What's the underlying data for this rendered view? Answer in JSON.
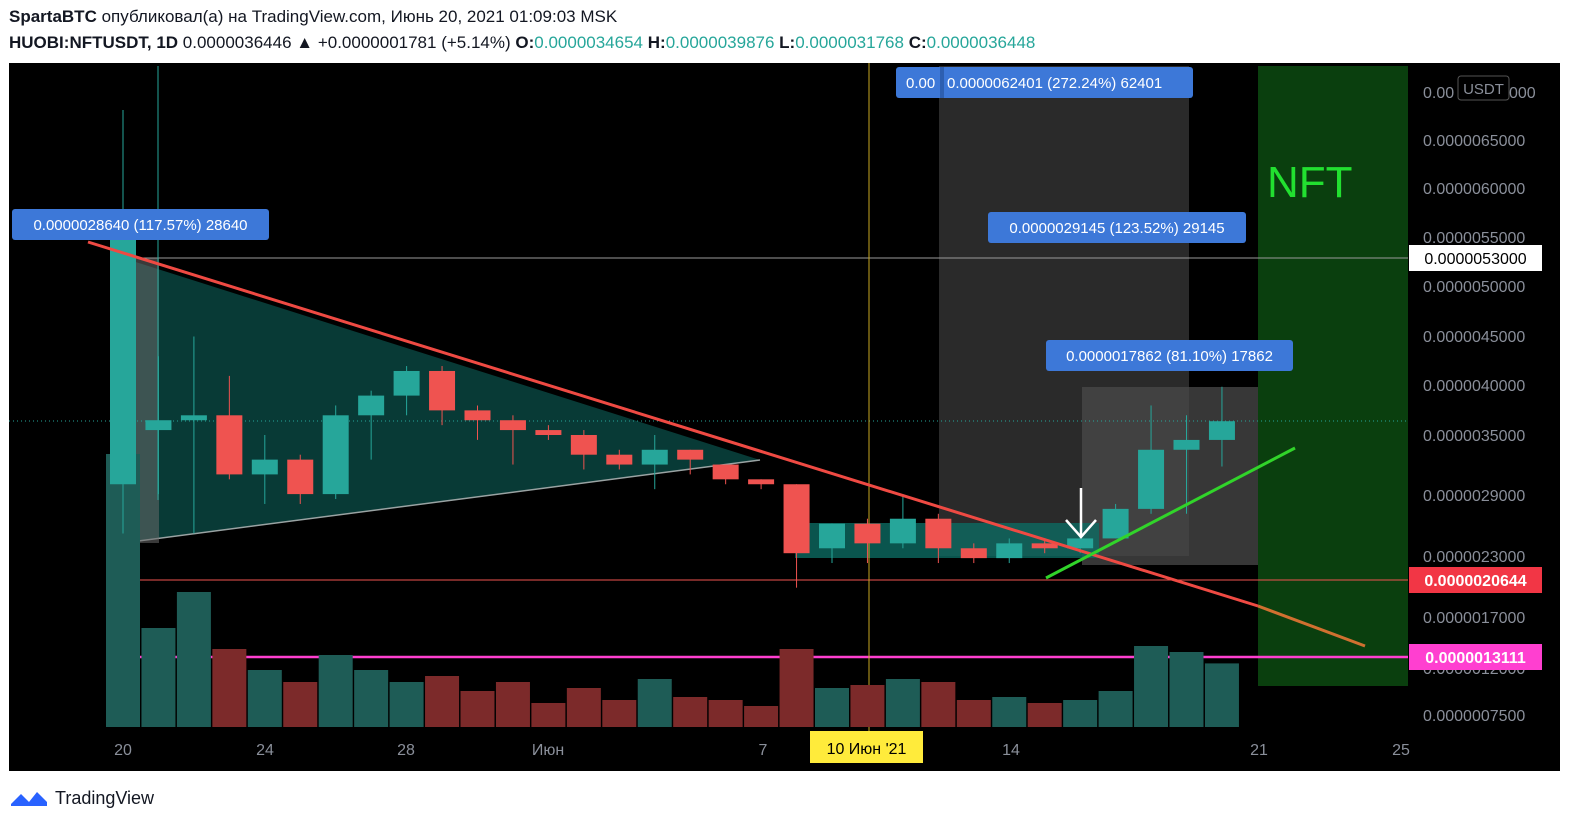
{
  "header": {
    "author": "SpartaBTC",
    "published_text": "опубликовал(а) на TradingView.com, Июнь 20, 2021 01:09:03 MSK",
    "symbol": "HUOBI:NFTUSDT, 1D",
    "last": "0.0000036446",
    "change": "▲ +0.0000001781 (+5.14%)",
    "o_label": "O:",
    "o_value": "0.0000034654",
    "h_label": "H:",
    "h_value": "0.0000039876",
    "l_label": "L:",
    "l_value": "0.0000031768",
    "c_label": "C:",
    "c_value": "0.0000036448"
  },
  "footer": {
    "brand": "TradingView"
  },
  "chart_data": {
    "type": "candlestick",
    "currency": "USDT",
    "y_ticks": [
      "0.0000065000",
      "0.0000060000",
      "0.0000055000",
      "0.0000050000",
      "0.0000045000",
      "0.0000040000",
      "0.0000035000",
      "0.0000029000",
      "0.0000023000",
      "0.0000017000",
      "0.0000012000",
      "0.0000007500"
    ],
    "y_top_tick_partial": "0.00",
    "y_top_tick_tail": "000",
    "x_ticks": [
      "20",
      "24",
      "28",
      "Июн",
      "7",
      "14",
      "21",
      "25"
    ],
    "crosshair_date": "10 Июн '21",
    "price_labels": [
      {
        "value": "0.0000053000",
        "style": "white"
      },
      {
        "value": "0.0000020644",
        "style": "red"
      },
      {
        "value": "0.0000013111",
        "style": "magenta"
      }
    ],
    "annotations": [
      "0.0000028640 (117.57%) 28640",
      "0.0000029145 (123.52%) 29145",
      "0.0000017862 (81.10%) 17862",
      "0.0000062401 (272.24%) 62401",
      "0.00"
    ],
    "text_label": "NFT",
    "candles": [
      {
        "date": "2021-05-20",
        "o": 3.0,
        "h": 6.8,
        "l": 2.5,
        "c": 5.5
      },
      {
        "date": "2021-05-21",
        "o": 3.55,
        "h": 4.3,
        "l": 2.9,
        "c": 3.65
      },
      {
        "date": "2021-05-22",
        "o": 3.65,
        "h": 4.5,
        "l": 2.5,
        "c": 3.7
      },
      {
        "date": "2021-05-23",
        "o": 3.7,
        "h": 4.1,
        "l": 3.05,
        "c": 3.1
      },
      {
        "date": "2021-05-24",
        "o": 3.1,
        "h": 3.5,
        "l": 2.8,
        "c": 3.25
      },
      {
        "date": "2021-05-25",
        "o": 3.25,
        "h": 3.3,
        "l": 2.8,
        "c": 2.9
      },
      {
        "date": "2021-05-26",
        "o": 2.9,
        "h": 3.8,
        "l": 2.85,
        "c": 3.7
      },
      {
        "date": "2021-05-27",
        "o": 3.7,
        "h": 3.95,
        "l": 3.25,
        "c": 3.9
      },
      {
        "date": "2021-05-28",
        "o": 3.9,
        "h": 4.2,
        "l": 3.7,
        "c": 4.15
      },
      {
        "date": "2021-05-29",
        "o": 4.15,
        "h": 4.2,
        "l": 3.6,
        "c": 3.75
      },
      {
        "date": "2021-05-30",
        "o": 3.75,
        "h": 3.8,
        "l": 3.45,
        "c": 3.65
      },
      {
        "date": "2021-05-31",
        "o": 3.65,
        "h": 3.7,
        "l": 3.2,
        "c": 3.55
      },
      {
        "date": "2021-06-01",
        "o": 3.55,
        "h": 3.6,
        "l": 3.45,
        "c": 3.5
      },
      {
        "date": "2021-06-02",
        "o": 3.5,
        "h": 3.55,
        "l": 3.15,
        "c": 3.3
      },
      {
        "date": "2021-06-03",
        "o": 3.3,
        "h": 3.35,
        "l": 3.15,
        "c": 3.2
      },
      {
        "date": "2021-06-04",
        "o": 3.2,
        "h": 3.5,
        "l": 2.95,
        "c": 3.35
      },
      {
        "date": "2021-06-05",
        "o": 3.35,
        "h": 3.35,
        "l": 3.1,
        "c": 3.25
      },
      {
        "date": "2021-06-06",
        "o": 3.2,
        "h": 3.2,
        "l": 3.0,
        "c": 3.05
      },
      {
        "date": "2021-06-07",
        "o": 3.05,
        "h": 3.05,
        "l": 2.95,
        "c": 3.0
      },
      {
        "date": "2021-06-08",
        "o": 3.0,
        "h": 3.0,
        "l": 1.95,
        "c": 2.3
      },
      {
        "date": "2021-06-09",
        "o": 2.35,
        "h": 2.6,
        "l": 2.2,
        "c": 2.6
      },
      {
        "date": "2021-06-10",
        "o": 2.6,
        "h": 2.65,
        "l": 2.2,
        "c": 2.4
      },
      {
        "date": "2021-06-11",
        "o": 2.4,
        "h": 2.9,
        "l": 2.35,
        "c": 2.65
      },
      {
        "date": "2021-06-12",
        "o": 2.65,
        "h": 2.7,
        "l": 2.2,
        "c": 2.35
      },
      {
        "date": "2021-06-13",
        "o": 2.35,
        "h": 2.4,
        "l": 2.2,
        "c": 2.25
      },
      {
        "date": "2021-06-14",
        "o": 2.25,
        "h": 2.45,
        "l": 2.2,
        "c": 2.4
      },
      {
        "date": "2021-06-15",
        "o": 2.4,
        "h": 2.45,
        "l": 2.3,
        "c": 2.35
      },
      {
        "date": "2021-06-16",
        "o": 2.35,
        "h": 2.5,
        "l": 2.3,
        "c": 2.45
      },
      {
        "date": "2021-06-17",
        "o": 2.45,
        "h": 2.8,
        "l": 2.45,
        "c": 2.75
      },
      {
        "date": "2021-06-18",
        "o": 2.75,
        "h": 3.8,
        "l": 2.7,
        "c": 3.35
      },
      {
        "date": "2021-06-19",
        "o": 3.35,
        "h": 3.7,
        "l": 2.7,
        "c": 3.45
      },
      {
        "date": "2021-06-20",
        "o": 3.45,
        "h": 3.99,
        "l": 3.18,
        "c": 3.64
      }
    ]
  }
}
